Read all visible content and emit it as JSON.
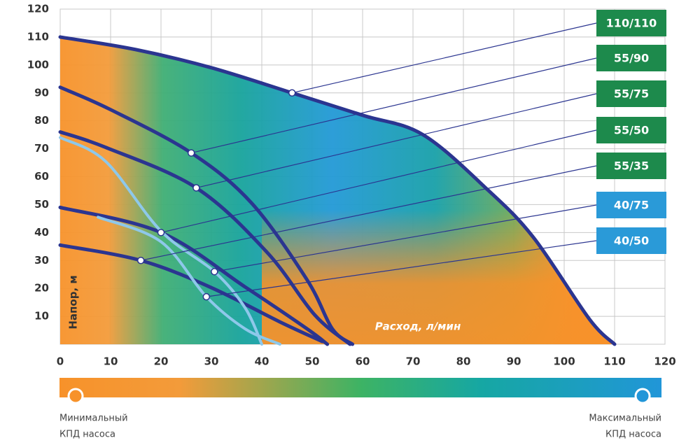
{
  "chart_data": {
    "type": "line",
    "x_label": "Расход, л/мин",
    "y_label": "Напор, м",
    "xlim": [
      0,
      120
    ],
    "xticks": [
      0,
      10,
      20,
      30,
      40,
      50,
      60,
      70,
      80,
      90,
      100,
      110,
      120
    ],
    "ylim": [
      0,
      120
    ],
    "yticks": [
      10,
      20,
      30,
      40,
      50,
      60,
      70,
      80,
      90,
      100,
      110,
      120
    ],
    "grid": true,
    "series": [
      {
        "name": "110/110",
        "color": "#2b3590",
        "label_color": "#1d8a4c",
        "x": [
          0,
          15,
          30,
          46,
          60,
          72,
          85,
          94,
          105,
          110
        ],
        "values": [
          110,
          105.5,
          99,
          90,
          82,
          75,
          55,
          38,
          9,
          0
        ],
        "marker_x": 46,
        "marker_y": 90
      },
      {
        "name": "55/90",
        "color": "#2b3590",
        "label_color": "#1d8a4c",
        "x": [
          0,
          10,
          26,
          38,
          49,
          54,
          58
        ],
        "values": [
          92,
          84,
          68.5,
          50.5,
          23,
          5.5,
          0
        ],
        "marker_x": 26,
        "marker_y": 68.5
      },
      {
        "name": "55/75",
        "color": "#2b3590",
        "label_color": "#1d8a4c",
        "x": [
          0,
          9,
          27,
          41,
          50.5,
          57.5
        ],
        "values": [
          76,
          70.5,
          56,
          33,
          10.5,
          0
        ],
        "marker_x": 27,
        "marker_y": 56
      },
      {
        "name": "55/50",
        "color": "#2b3590",
        "label_color": "#1d8a4c",
        "x": [
          0,
          20,
          36.7,
          49,
          53
        ],
        "values": [
          49,
          40,
          20.5,
          5.5,
          0
        ],
        "marker_x": 20,
        "marker_y": 40
      },
      {
        "name": "55/35",
        "color": "#2b3590",
        "label_color": "#1d8a4c",
        "x": [
          0,
          16,
          29.7,
          43.6,
          52
        ],
        "values": [
          35.5,
          30,
          20.5,
          8,
          1
        ],
        "marker_x": 16,
        "marker_y": 30
      },
      {
        "name": "40/75",
        "color": "#8ec8ea",
        "label_color": "#2a9ad8",
        "x": [
          0,
          9,
          20,
          30.6,
          36.7,
          40
        ],
        "values": [
          74,
          65.5,
          40.5,
          26,
          13,
          0
        ],
        "marker_x": 30.6,
        "marker_y": 26
      },
      {
        "name": "40/50",
        "color": "#8ec8ea",
        "label_color": "#2a9ad8",
        "x": [
          7.5,
          20,
          29,
          36.7,
          43.6
        ],
        "values": [
          45.5,
          36.7,
          17,
          5.5,
          0
        ],
        "marker_x": 29,
        "marker_y": 17
      }
    ]
  },
  "colorbar": {
    "min_label": [
      "Минимальный",
      "КПД насоса"
    ],
    "max_label": [
      "Максимальный",
      "КПД насоса"
    ]
  }
}
